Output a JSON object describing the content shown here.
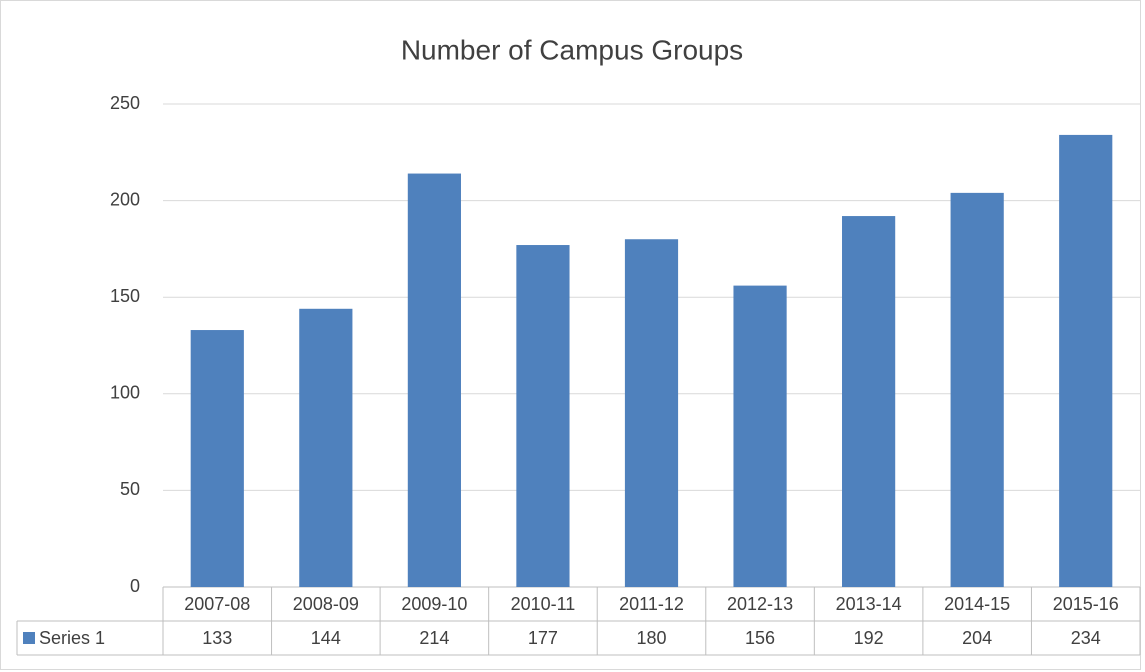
{
  "chart_data": {
    "type": "bar",
    "title": "Number of Campus Groups",
    "categories": [
      "2007-08",
      "2008-09",
      "2009-10",
      "2010-11",
      "2011-12",
      "2012-13",
      "2013-14",
      "2014-15",
      "2015-16"
    ],
    "series": [
      {
        "name": "Series 1",
        "color": "#4f81bd",
        "values": [
          133,
          144,
          214,
          177,
          180,
          156,
          192,
          204,
          234
        ]
      }
    ],
    "ylim": [
      0,
      250
    ],
    "yticks": [
      0,
      50,
      100,
      150,
      200,
      250
    ],
    "grid": true,
    "data_table": true
  }
}
